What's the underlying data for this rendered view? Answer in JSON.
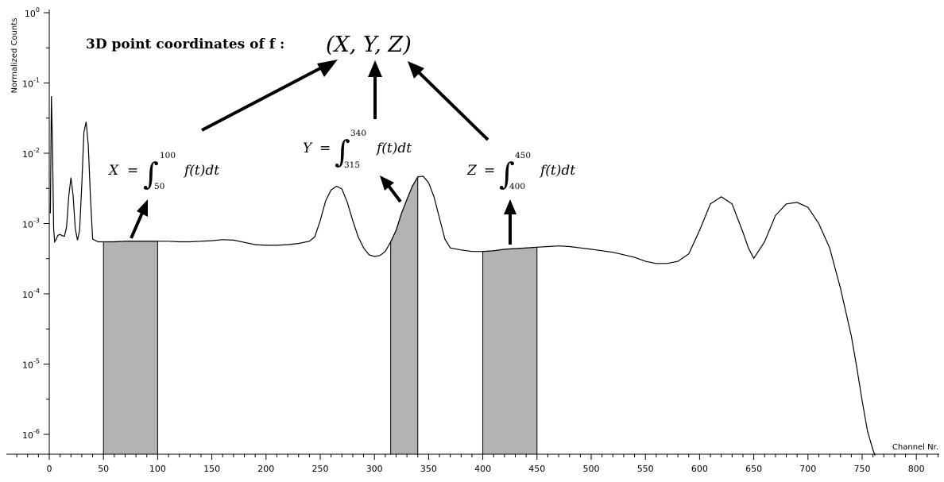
{
  "chart_data": {
    "type": "line",
    "title": "",
    "xlabel": "Channel Nr.",
    "ylabel": "Normalized Counts",
    "xlim": [
      0,
      820
    ],
    "ylim_log10": [
      -6.3,
      0
    ],
    "yscale": "log",
    "x_ticks": [
      "0",
      "50",
      "100",
      "150",
      "200",
      "250",
      "300",
      "350",
      "400",
      "450",
      "500",
      "550",
      "600",
      "650",
      "700",
      "750",
      "800"
    ],
    "y_ticks": [
      {
        "base": "10",
        "exp": "0"
      },
      {
        "base": "10",
        "exp": "-1"
      },
      {
        "base": "10",
        "exp": "-2"
      },
      {
        "base": "10",
        "exp": "-3"
      },
      {
        "base": "10",
        "exp": "-4"
      },
      {
        "base": "10",
        "exp": "-5"
      },
      {
        "base": "10",
        "exp": "-6"
      }
    ],
    "grid": false,
    "line_color": "#000000",
    "fill_color": "#b3b3b3",
    "series": [
      {
        "x": [
          1,
          2,
          3,
          4,
          5,
          6,
          8,
          10,
          12,
          14,
          16,
          18,
          20,
          22,
          24,
          26,
          28,
          30,
          32,
          34,
          36,
          38,
          40,
          45,
          50,
          60,
          70,
          80,
          90,
          100,
          110,
          120,
          130,
          140,
          150,
          160,
          170,
          180,
          190,
          200,
          210,
          220,
          230,
          240,
          245,
          250,
          255,
          260,
          265,
          270,
          275,
          280,
          285,
          290,
          295,
          300,
          305,
          310,
          315,
          320,
          325,
          330,
          335,
          340,
          345,
          350,
          355,
          360,
          365,
          370,
          380,
          390,
          400,
          410,
          420,
          430,
          440,
          450,
          460,
          470,
          480,
          490,
          500,
          510,
          520,
          530,
          540,
          550,
          560,
          570,
          580,
          590,
          600,
          610,
          620,
          630,
          640,
          645,
          650,
          660,
          670,
          680,
          690,
          700,
          710,
          720,
          730,
          740,
          745,
          750,
          755,
          760,
          762
        ],
        "y": [
          0.0014,
          0.065,
          0.012,
          0.00085,
          0.00055,
          0.00058,
          0.00068,
          0.0007,
          0.00067,
          0.00066,
          0.0009,
          0.0025,
          0.0045,
          0.0025,
          0.00085,
          0.00058,
          0.0008,
          0.0035,
          0.02,
          0.028,
          0.013,
          0.0024,
          0.0006,
          0.00055,
          0.00055,
          0.00055,
          0.00056,
          0.00056,
          0.00056,
          0.00056,
          0.00056,
          0.00055,
          0.00055,
          0.00056,
          0.00057,
          0.00059,
          0.00058,
          0.00054,
          0.0005,
          0.00049,
          0.00049,
          0.0005,
          0.00052,
          0.00056,
          0.00065,
          0.0011,
          0.0021,
          0.003,
          0.0034,
          0.0031,
          0.002,
          0.0011,
          0.00065,
          0.00045,
          0.00036,
          0.00034,
          0.00035,
          0.0004,
          0.00055,
          0.0008,
          0.0014,
          0.0022,
          0.0034,
          0.0046,
          0.0047,
          0.0038,
          0.0024,
          0.0012,
          0.0006,
          0.00045,
          0.00042,
          0.0004,
          0.0004,
          0.00041,
          0.00043,
          0.00044,
          0.00045,
          0.00046,
          0.00047,
          0.00048,
          0.00047,
          0.00045,
          0.00043,
          0.00041,
          0.00039,
          0.00036,
          0.00033,
          0.00029,
          0.00027,
          0.00027,
          0.00029,
          0.00037,
          0.0008,
          0.0019,
          0.0024,
          0.0019,
          0.00075,
          0.00045,
          0.00032,
          0.00055,
          0.0013,
          0.0019,
          0.002,
          0.0017,
          0.001,
          0.00045,
          0.00012,
          2.5e-05,
          9e-06,
          3e-06,
          1.1e-06,
          6e-07,
          5e-07
        ]
      }
    ],
    "shaded_regions": [
      {
        "from": 50,
        "to": 100
      },
      {
        "from": 315,
        "to": 340
      },
      {
        "from": 400,
        "to": 450
      }
    ],
    "annotations": {
      "headline": "3D point coordinates of f :",
      "coords": "(X,  Y,  Z)",
      "integrals": [
        {
          "var": "X",
          "lower": "50",
          "upper": "100",
          "integrand": "f(t)dt"
        },
        {
          "var": "Y",
          "lower": "315",
          "upper": "340",
          "integrand": "f(t)dt"
        },
        {
          "var": "Z",
          "lower": "400",
          "upper": "450",
          "integrand": "f(t)dt"
        }
      ],
      "equals": "=",
      "integral_sign": "∫"
    }
  }
}
